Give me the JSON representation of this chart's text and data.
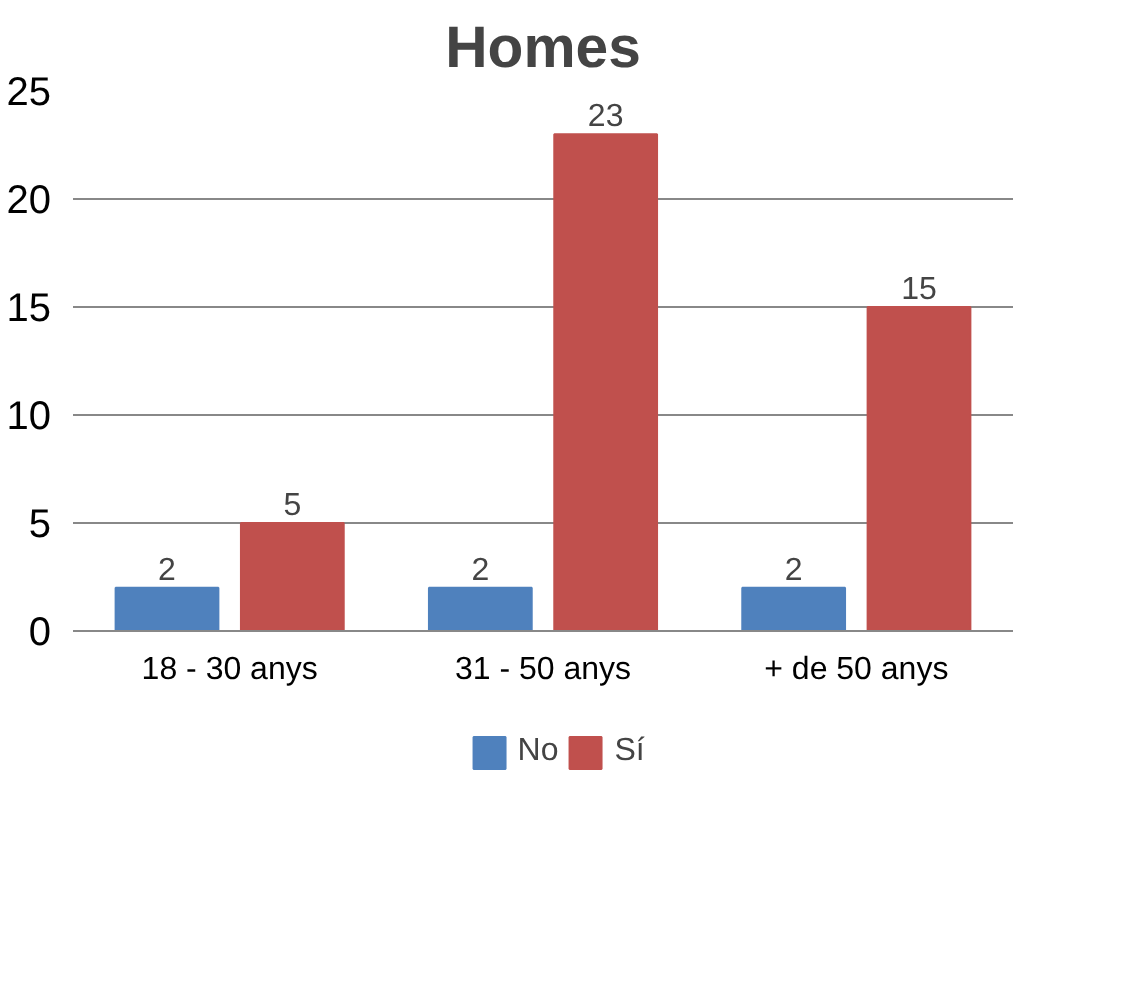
{
  "chart_data": {
    "type": "bar",
    "title": "Homes",
    "categories": [
      "18 - 30 anys",
      "31 - 50 anys",
      "+ de 50 anys"
    ],
    "series": [
      {
        "name": "No",
        "color": "#4f81bd",
        "values": [
          2,
          2,
          2
        ]
      },
      {
        "name": "Sí",
        "color": "#c0504d",
        "values": [
          5,
          23,
          15
        ]
      }
    ],
    "ylim": [
      0,
      25
    ],
    "yticks": [
      0,
      5,
      10,
      15,
      20,
      25
    ],
    "grid": "y",
    "legend": "bottom",
    "data_labels": true
  }
}
